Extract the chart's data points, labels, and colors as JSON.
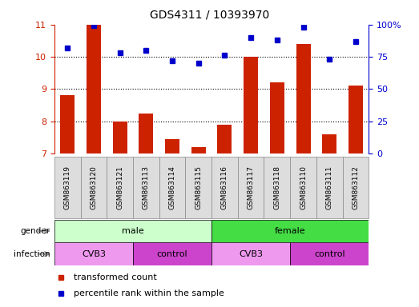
{
  "title": "GDS4311 / 10393970",
  "samples": [
    "GSM863119",
    "GSM863120",
    "GSM863121",
    "GSM863113",
    "GSM863114",
    "GSM863115",
    "GSM863116",
    "GSM863117",
    "GSM863118",
    "GSM863110",
    "GSM863111",
    "GSM863112"
  ],
  "transformed_count": [
    8.8,
    11.0,
    8.0,
    8.25,
    7.45,
    7.2,
    7.9,
    10.0,
    9.2,
    10.4,
    7.6,
    9.1
  ],
  "percentile_rank": [
    82,
    99,
    78,
    80,
    72,
    70,
    76,
    90,
    88,
    98,
    73,
    87
  ],
  "bar_color": "#cc2200",
  "dot_color": "#0000cc",
  "ylim_left": [
    7,
    11
  ],
  "ylim_right": [
    0,
    100
  ],
  "yticks_left": [
    7,
    8,
    9,
    10,
    11
  ],
  "yticks_right": [
    0,
    25,
    50,
    75,
    100
  ],
  "ytick_labels_right": [
    "0",
    "25",
    "50",
    "75",
    "100%"
  ],
  "gender_groups": [
    {
      "label": "male",
      "start": 0,
      "end": 6,
      "color": "#ccffcc"
    },
    {
      "label": "female",
      "start": 6,
      "end": 12,
      "color": "#44dd44"
    }
  ],
  "infection_groups": [
    {
      "label": "CVB3",
      "start": 0,
      "end": 3,
      "color": "#ee99ee"
    },
    {
      "label": "control",
      "start": 3,
      "end": 6,
      "color": "#cc44cc"
    },
    {
      "label": "CVB3",
      "start": 6,
      "end": 9,
      "color": "#ee99ee"
    },
    {
      "label": "control",
      "start": 9,
      "end": 12,
      "color": "#cc44cc"
    }
  ],
  "legend_bar_label": "transformed count",
  "legend_dot_label": "percentile rank within the sample",
  "bar_color_legend": "#cc2200",
  "dot_color_legend": "#0000cc",
  "bar_bottom": 7,
  "sample_box_color": "#dddddd",
  "sample_box_edgecolor": "#888888"
}
